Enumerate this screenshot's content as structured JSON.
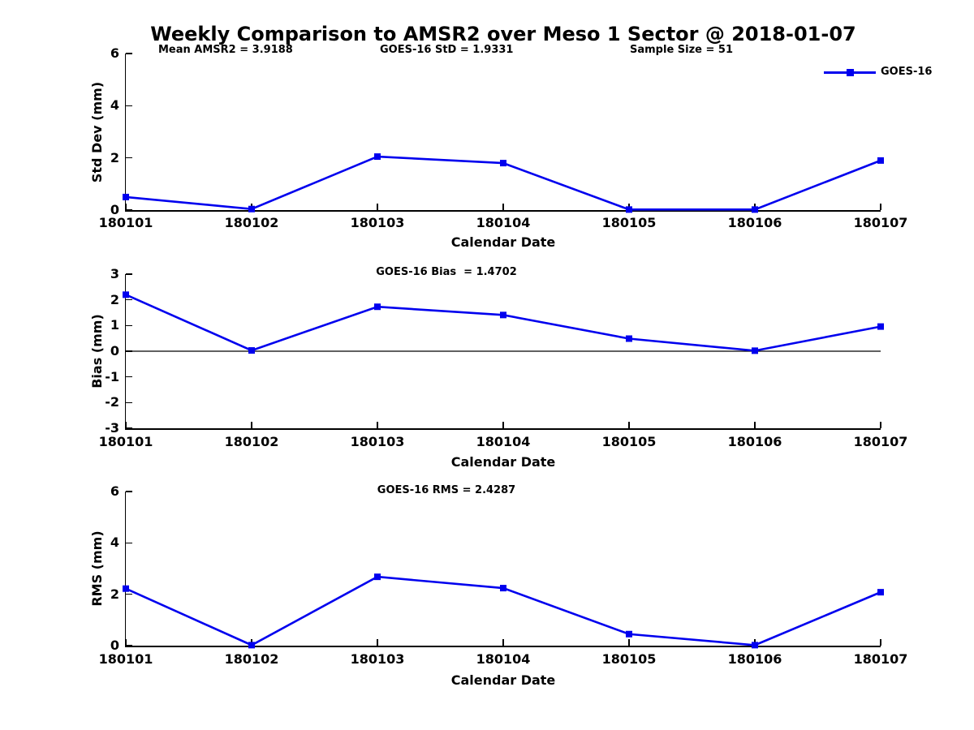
{
  "title": "Weekly Comparison to AMSR2 over Meso 1 Sector @ 2018-01-07",
  "legend": {
    "label": "GOES-16",
    "position": "top-right"
  },
  "colors": {
    "line": "#0000EE",
    "axis": "#000000",
    "zero_line": "#000000",
    "background": "#FFFFFF"
  },
  "chart_data": [
    {
      "type": "line",
      "name": "std-dev",
      "title": "",
      "xlabel": "Calendar Date",
      "ylabel": "Std Dev (mm)",
      "ylim": [
        0,
        6
      ],
      "yticks": [
        6,
        4,
        2,
        0
      ],
      "categories": [
        "180101",
        "180102",
        "180103",
        "180104",
        "180105",
        "180106",
        "180107"
      ],
      "series": [
        {
          "name": "GOES-16",
          "marker": "square",
          "values": [
            0.5,
            0.04,
            2.05,
            1.8,
            0.02,
            0.02,
            1.9
          ]
        }
      ],
      "grid": false,
      "zero_line": false,
      "annotations": [
        {
          "text": "Mean AMSR2 = 3.9188"
        },
        {
          "text": "GOES-16 StD = 1.9331"
        },
        {
          "text": "Sample Size = 51"
        }
      ]
    },
    {
      "type": "line",
      "name": "bias",
      "title": "",
      "xlabel": "Calendar Date",
      "ylabel": "Bias (mm)",
      "ylim": [
        -3,
        3
      ],
      "yticks": [
        3,
        2,
        1,
        0,
        -1,
        -2,
        -3
      ],
      "categories": [
        "180101",
        "180102",
        "180103",
        "180104",
        "180105",
        "180106",
        "180107"
      ],
      "series": [
        {
          "name": "GOES-16",
          "marker": "square",
          "values": [
            2.2,
            0.03,
            1.73,
            1.41,
            0.49,
            0.02,
            0.96
          ]
        }
      ],
      "grid": false,
      "zero_line": true,
      "annotations": [
        {
          "text": "GOES-16 Bias  = 1.4702"
        }
      ]
    },
    {
      "type": "line",
      "name": "rms",
      "title": "",
      "xlabel": "Calendar Date",
      "ylabel": "RMS (mm)",
      "ylim": [
        0,
        6
      ],
      "yticks": [
        6,
        4,
        2,
        0
      ],
      "categories": [
        "180101",
        "180102",
        "180103",
        "180104",
        "180105",
        "180106",
        "180107"
      ],
      "series": [
        {
          "name": "GOES-16",
          "marker": "square",
          "values": [
            2.22,
            0.02,
            2.68,
            2.24,
            0.45,
            0.02,
            2.08
          ]
        }
      ],
      "grid": false,
      "zero_line": false,
      "annotations": [
        {
          "text": "GOES-16 RMS = 2.4287"
        }
      ]
    }
  ]
}
